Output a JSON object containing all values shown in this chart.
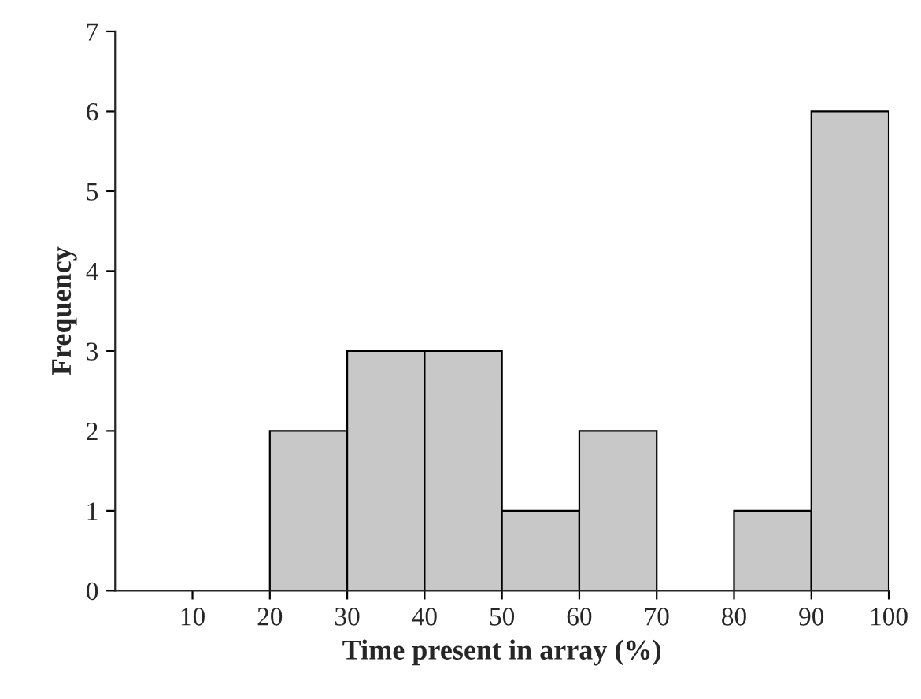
{
  "chart_data": {
    "type": "histogram",
    "xlabel": "Time present in array (%)",
    "ylabel": "Frequency",
    "bins": [
      0,
      10,
      20,
      30,
      40,
      50,
      60,
      70,
      80,
      90,
      100
    ],
    "values": [
      0,
      0,
      2,
      3,
      3,
      1,
      2,
      0,
      1,
      6
    ],
    "color": "#c8c8c8",
    "xlim": [
      0,
      100
    ],
    "xticks": [
      10,
      20,
      30,
      40,
      50,
      60,
      70,
      80,
      90,
      100
    ],
    "ylim": [
      0,
      7
    ],
    "yticks": [
      0,
      1,
      2,
      3,
      4,
      5,
      6,
      7
    ],
    "grid": false
  }
}
